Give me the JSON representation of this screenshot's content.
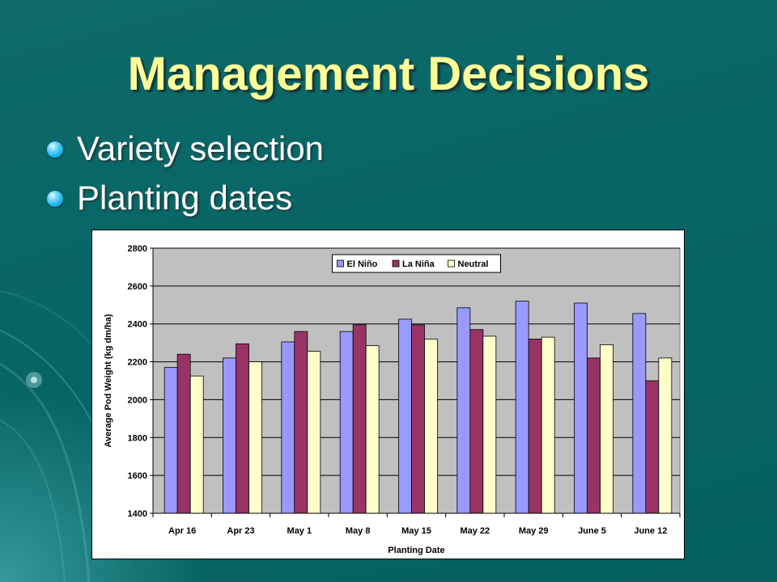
{
  "slide": {
    "title": "Management Decisions",
    "bullets": [
      "Variety selection",
      "Planting dates"
    ],
    "colors": {
      "background": "#086565",
      "title": "#ffff99",
      "bullet_text": "#ffffff",
      "bullet_dot": "#22b6f0"
    }
  },
  "chart_data": {
    "type": "bar",
    "title": "",
    "xlabel": "Planting Date",
    "ylabel": "Average Pod Weight (kg dm/ha)",
    "ylim": [
      1400,
      2800
    ],
    "yticks": [
      1400,
      1600,
      1800,
      2000,
      2200,
      2400,
      2600,
      2800
    ],
    "grid": true,
    "plot_background": "#c0c0c0",
    "legend_position": "top-center",
    "categories": [
      "Apr 16",
      "Apr 23",
      "May 1",
      "May 8",
      "May 15",
      "May 22",
      "May 29",
      "June 5",
      "June 12"
    ],
    "series": [
      {
        "name": "El Niño",
        "color": "#9999ff",
        "values": [
          2170,
          2220,
          2305,
          2360,
          2425,
          2485,
          2520,
          2510,
          2455
        ]
      },
      {
        "name": "La Niña",
        "color": "#993366",
        "values": [
          2240,
          2295,
          2360,
          2395,
          2395,
          2370,
          2320,
          2220,
          2100
        ]
      },
      {
        "name": "Neutral",
        "color": "#ffffcc",
        "values": [
          2125,
          2200,
          2255,
          2285,
          2320,
          2335,
          2330,
          2290,
          2220
        ]
      }
    ]
  }
}
